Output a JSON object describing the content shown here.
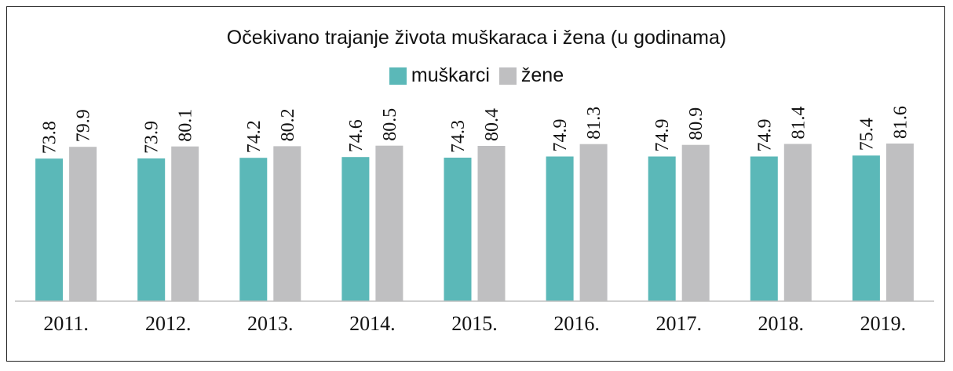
{
  "chart_data": {
    "type": "bar",
    "title": "Očekivano trajanje života muškaraca i žena (u godinama)",
    "categories": [
      "2011.",
      "2012.",
      "2013.",
      "2014.",
      "2015.",
      "2016.",
      "2017.",
      "2018.",
      "2019."
    ],
    "series": [
      {
        "name": "muškarci",
        "color": "#5bb8b8",
        "values": [
          73.8,
          73.9,
          74.2,
          74.6,
          74.3,
          74.9,
          74.9,
          74.9,
          75.4
        ]
      },
      {
        "name": "žene",
        "color": "#bfbfc1",
        "values": [
          79.9,
          80.1,
          80.2,
          80.5,
          80.4,
          81.3,
          80.9,
          81.4,
          81.6
        ]
      }
    ],
    "ylim": [
      0,
      81.6
    ],
    "xlabel": "",
    "ylabel": "",
    "legend_position": "top-center",
    "grid": false,
    "data_labels": "vertical above bars"
  }
}
